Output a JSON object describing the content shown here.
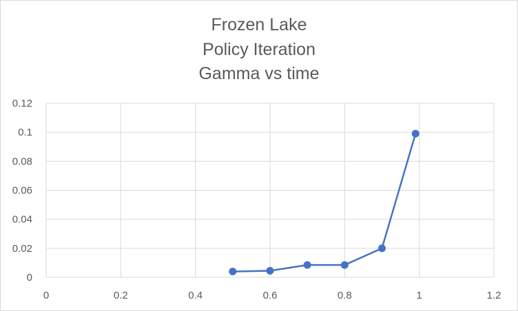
{
  "chart_data": {
    "type": "scatter",
    "title_lines": [
      "Frozen Lake",
      "Policy Iteration",
      "Gamma vs time"
    ],
    "xlabel": "",
    "ylabel": "",
    "xlim": [
      0,
      1.2
    ],
    "ylim": [
      0,
      0.12
    ],
    "x_ticks": [
      "0",
      "0.2",
      "0.4",
      "0.6",
      "0.8",
      "1",
      "1.2"
    ],
    "y_ticks": [
      "0",
      "0.02",
      "0.04",
      "0.06",
      "0.08",
      "0.1",
      "0.12"
    ],
    "grid": true,
    "legend": "none",
    "series": [
      {
        "color": "#4472c4",
        "x": [
          0.5,
          0.6,
          0.7,
          0.8,
          0.9,
          0.99
        ],
        "y": [
          0.004,
          0.0045,
          0.0085,
          0.0085,
          0.02,
          0.099
        ]
      }
    ]
  }
}
